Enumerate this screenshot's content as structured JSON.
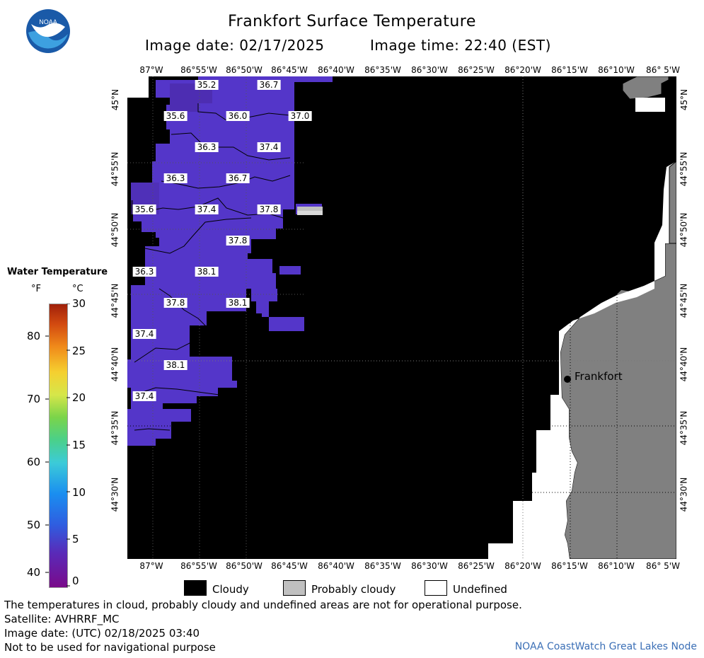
{
  "header": {
    "title": "Frankfort Surface Temperature",
    "image_date": "Image date: 02/17/2025",
    "image_time": "Image time: 22:40 (EST)"
  },
  "logo": {
    "text": "NOAA"
  },
  "colorbar": {
    "title": "Water Temperature",
    "unit_f": "°F",
    "unit_c": "°C",
    "f_ticks": [
      "80",
      "70",
      "60",
      "50",
      "40"
    ],
    "c_ticks": [
      "30",
      "25",
      "20",
      "15",
      "10",
      "5",
      "0"
    ],
    "range_c": [
      0,
      30
    ]
  },
  "map": {
    "lon_labels": [
      "87°W",
      "86°55'W",
      "86°50'W",
      "86°45'W",
      "86°40'W",
      "86°35'W",
      "86°30'W",
      "86°25'W",
      "86°20'W",
      "86°15'W",
      "86°10'W",
      "86° 5'W"
    ],
    "lat_labels": [
      "45°N",
      "44°55'N",
      "44°50'N",
      "44°45'N",
      "44°40'N",
      "44°35'N",
      "44°30'N"
    ],
    "city": "Frankfort",
    "temperature_labels": [
      "35.2",
      "36.7",
      "35.6",
      "36.0",
      "37.0",
      "36.3",
      "37.4",
      "36.3",
      "36.7",
      "35.6",
      "37.4",
      "37.8",
      "37.8",
      "36.3",
      "38.1",
      "37.8",
      "38.1",
      "37.4",
      "38.1",
      "37.4"
    ]
  },
  "legend": {
    "cloudy": "Cloudy",
    "probably_cloudy": "Probably cloudy",
    "undefined": "Undefined"
  },
  "notes": {
    "line1": "The temperatures in cloud, probably cloudy and undefined areas are not for operational purpose.",
    "line2": "Satellite: AVHRRF_MC",
    "line3": "Image date: (UTC) 02/18/2025  03:40",
    "line4": "Not to be used for navigational purpose"
  },
  "credit": "NOAA CoastWatch Great Lakes Node",
  "colors": {
    "cloudy": "#000000",
    "probably_cloudy": "#c0c0c0",
    "undefined": "#ffffff",
    "land": "#808080",
    "water_cold": "#5a3cc8"
  }
}
